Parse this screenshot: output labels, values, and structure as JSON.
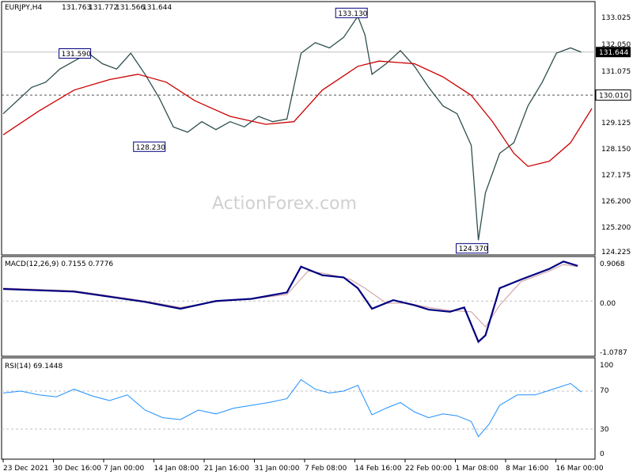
{
  "chart_data": [
    {
      "type": "line",
      "panel": "price",
      "title": "EURJPY,H4",
      "ohlc_readout": [
        "131.763",
        "131.772",
        "131.566",
        "131.644"
      ],
      "watermark": "ActionForex.com",
      "ylim": [
        124.0,
        133.5
      ],
      "y_ticks": [
        "133.025",
        "132.050",
        "131.075",
        "130.100",
        "129.125",
        "128.150",
        "127.175",
        "126.200",
        "125.200",
        "124.225"
      ],
      "current_price_label": "131.644",
      "current_price": 131.644,
      "level_label": "130.010",
      "level": 130.01,
      "annotations": [
        {
          "text": "133.130",
          "x": 10,
          "y": 133.13
        },
        {
          "text": "131.590",
          "x": 2.2,
          "y": 131.59
        },
        {
          "text": "128.230",
          "x": 4.3,
          "y": 128.23
        },
        {
          "text": "124.370",
          "x": 13.4,
          "y": 124.37
        }
      ],
      "price_series": [
        [
          0,
          129.3
        ],
        [
          0.4,
          129.8
        ],
        [
          0.8,
          130.3
        ],
        [
          1.2,
          130.5
        ],
        [
          1.6,
          131.0
        ],
        [
          2.0,
          131.3
        ],
        [
          2.4,
          131.6
        ],
        [
          2.8,
          131.2
        ],
        [
          3.2,
          131.0
        ],
        [
          3.6,
          131.6
        ],
        [
          4.0,
          130.8
        ],
        [
          4.4,
          129.9
        ],
        [
          4.8,
          128.8
        ],
        [
          5.2,
          128.6
        ],
        [
          5.6,
          129.0
        ],
        [
          6.0,
          128.7
        ],
        [
          6.4,
          129.0
        ],
        [
          6.8,
          128.8
        ],
        [
          7.2,
          129.2
        ],
        [
          7.6,
          129.0
        ],
        [
          8.0,
          129.1
        ],
        [
          8.4,
          131.6
        ],
        [
          8.8,
          132.0
        ],
        [
          9.2,
          131.8
        ],
        [
          9.6,
          132.2
        ],
        [
          10.0,
          133.0
        ],
        [
          10.2,
          132.3
        ],
        [
          10.4,
          130.8
        ],
        [
          10.8,
          131.2
        ],
        [
          11.2,
          131.7
        ],
        [
          11.6,
          131.1
        ],
        [
          12.0,
          130.3
        ],
        [
          12.4,
          129.6
        ],
        [
          12.8,
          129.3
        ],
        [
          13.2,
          128.1
        ],
        [
          13.4,
          124.5
        ],
        [
          13.6,
          126.3
        ],
        [
          14.0,
          127.8
        ],
        [
          14.4,
          128.2
        ],
        [
          14.8,
          129.6
        ],
        [
          15.2,
          130.5
        ],
        [
          15.6,
          131.6
        ],
        [
          16.0,
          131.8
        ],
        [
          16.3,
          131.64
        ]
      ],
      "ma_series": [
        [
          0,
          128.5
        ],
        [
          1.0,
          129.4
        ],
        [
          2.0,
          130.2
        ],
        [
          3.0,
          130.6
        ],
        [
          3.8,
          130.8
        ],
        [
          4.6,
          130.5
        ],
        [
          5.4,
          129.8
        ],
        [
          6.4,
          129.2
        ],
        [
          7.4,
          128.9
        ],
        [
          8.2,
          129.0
        ],
        [
          9.0,
          130.2
        ],
        [
          10.0,
          131.1
        ],
        [
          10.6,
          131.3
        ],
        [
          11.6,
          131.2
        ],
        [
          12.4,
          130.7
        ],
        [
          13.2,
          130.0
        ],
        [
          13.8,
          129.0
        ],
        [
          14.4,
          127.8
        ],
        [
          14.8,
          127.3
        ],
        [
          15.4,
          127.5
        ],
        [
          16.0,
          128.2
        ],
        [
          16.6,
          129.5
        ]
      ]
    },
    {
      "type": "line",
      "panel": "macd",
      "title": "MACD(12,26,9) 0.7155 0.7776",
      "ylim": [
        -1.25,
        1.0
      ],
      "y_ticks": [
        "0.9068",
        "0.00",
        "-1.0787"
      ],
      "series": [
        {
          "values": [
            [
              0,
              0.28
            ],
            [
              1,
              0.25
            ],
            [
              2,
              0.22
            ],
            [
              3,
              0.1
            ],
            [
              4,
              -0.02
            ],
            [
              5,
              -0.18
            ],
            [
              6,
              0.0
            ],
            [
              7,
              0.05
            ],
            [
              8,
              0.2
            ],
            [
              8.4,
              0.8
            ],
            [
              9.0,
              0.6
            ],
            [
              9.6,
              0.55
            ],
            [
              10.0,
              0.3
            ],
            [
              10.4,
              -0.18
            ],
            [
              11.0,
              0.02
            ],
            [
              11.6,
              -0.1
            ],
            [
              12.0,
              -0.2
            ],
            [
              12.6,
              -0.25
            ],
            [
              13.0,
              -0.15
            ],
            [
              13.4,
              -0.95
            ],
            [
              13.6,
              -0.8
            ],
            [
              14.0,
              0.3
            ],
            [
              14.6,
              0.5
            ],
            [
              15.4,
              0.75
            ],
            [
              15.8,
              0.92
            ],
            [
              16.2,
              0.82
            ]
          ]
        },
        {
          "values": [
            [
              0,
              0.3
            ],
            [
              1,
              0.27
            ],
            [
              2,
              0.24
            ],
            [
              3,
              0.12
            ],
            [
              4,
              0.0
            ],
            [
              5,
              -0.15
            ],
            [
              6,
              -0.02
            ],
            [
              7,
              0.05
            ],
            [
              8,
              0.15
            ],
            [
              8.6,
              0.7
            ],
            [
              9.2,
              0.62
            ],
            [
              9.8,
              0.5
            ],
            [
              10.2,
              0.3
            ],
            [
              10.8,
              -0.05
            ],
            [
              11.4,
              -0.05
            ],
            [
              12.0,
              -0.15
            ],
            [
              12.6,
              -0.22
            ],
            [
              13.2,
              -0.25
            ],
            [
              13.6,
              -0.6
            ],
            [
              14.0,
              -0.1
            ],
            [
              14.6,
              0.45
            ],
            [
              15.4,
              0.7
            ],
            [
              15.8,
              0.85
            ],
            [
              16.2,
              0.8
            ]
          ]
        }
      ]
    },
    {
      "type": "line",
      "panel": "rsi",
      "title": "RSI(14) 69.1448",
      "ylim": [
        0,
        100
      ],
      "y_ticks": [
        "100",
        "70",
        "30",
        "0"
      ],
      "levels": [
        70,
        30
      ],
      "values": [
        [
          0,
          68
        ],
        [
          0.5,
          70
        ],
        [
          1.0,
          66
        ],
        [
          1.5,
          64
        ],
        [
          2.0,
          72
        ],
        [
          2.5,
          65
        ],
        [
          3.0,
          60
        ],
        [
          3.5,
          66
        ],
        [
          4.0,
          50
        ],
        [
          4.5,
          42
        ],
        [
          5.0,
          40
        ],
        [
          5.5,
          50
        ],
        [
          6.0,
          46
        ],
        [
          6.5,
          52
        ],
        [
          7.0,
          55
        ],
        [
          7.5,
          58
        ],
        [
          8.0,
          62
        ],
        [
          8.4,
          82
        ],
        [
          8.8,
          72
        ],
        [
          9.2,
          68
        ],
        [
          9.6,
          70
        ],
        [
          10.0,
          76
        ],
        [
          10.4,
          45
        ],
        [
          10.8,
          52
        ],
        [
          11.2,
          58
        ],
        [
          11.6,
          48
        ],
        [
          12.0,
          42
        ],
        [
          12.4,
          46
        ],
        [
          12.8,
          44
        ],
        [
          13.2,
          38
        ],
        [
          13.4,
          22
        ],
        [
          13.7,
          35
        ],
        [
          14.0,
          55
        ],
        [
          14.5,
          66
        ],
        [
          15.0,
          66
        ],
        [
          15.5,
          72
        ],
        [
          16.0,
          78
        ],
        [
          16.3,
          69
        ]
      ]
    }
  ],
  "x_axis": {
    "ticks": [
      {
        "label": "23 Dec 2021",
        "x": 0
      },
      {
        "label": "30 Dec 16:00",
        "x": 1.3
      },
      {
        "label": "7 Jan 00:00",
        "x": 2.6
      },
      {
        "label": "14 Jan 08:00",
        "x": 3.9
      },
      {
        "label": "21 Jan 16:00",
        "x": 5.2
      },
      {
        "label": "31 Jan 00:00",
        "x": 6.5
      },
      {
        "label": "7 Feb 08:00",
        "x": 7.8
      },
      {
        "label": "14 Feb 16:00",
        "x": 9.1
      },
      {
        "label": "22 Feb 00:00",
        "x": 10.4
      },
      {
        "label": "1 Mar 08:00",
        "x": 11.7
      },
      {
        "label": "8 Mar 16:00",
        "x": 13.0
      },
      {
        "label": "16 Mar 00:00",
        "x": 14.3
      }
    ],
    "range": [
      0,
      16.6
    ]
  },
  "colors": {
    "price": "#2f4f4f",
    "ma": "#cc0000",
    "macd": "#000080",
    "signal": "#d4a9a9",
    "rsi": "#1e90ff",
    "label_border": "#000080",
    "grid": "#c0c0c0"
  }
}
